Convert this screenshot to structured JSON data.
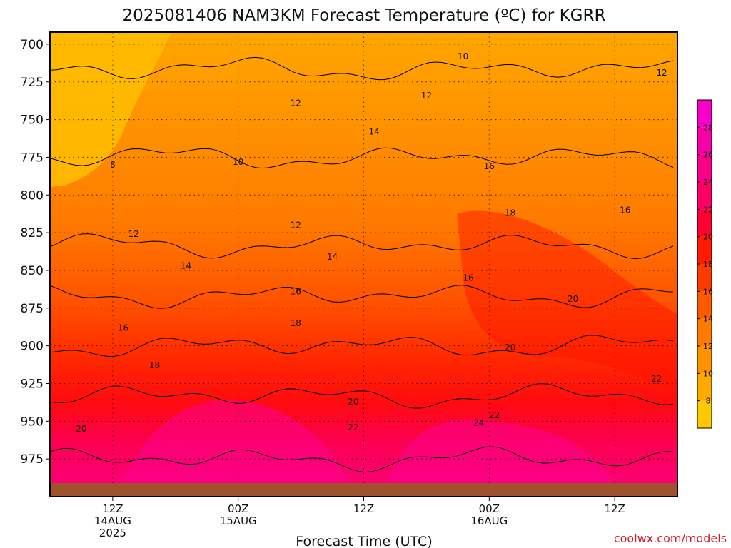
{
  "chart_data": {
    "type": "heatmap",
    "title": "2025081406 NAM3KM Forecast Temperature (ºC) for KGRR",
    "xlabel": "Forecast Time (UTC)",
    "ylabel": "",
    "y_ticks": [
      "700",
      "725",
      "750",
      "775",
      "800",
      "825",
      "850",
      "875",
      "900",
      "925",
      "950",
      "975"
    ],
    "y_values": [
      700,
      725,
      750,
      775,
      800,
      825,
      850,
      875,
      900,
      925,
      950,
      975
    ],
    "ylim": [
      692,
      1000
    ],
    "y_axis": "pressure (hPa), increasing downward",
    "x_ticks": [
      {
        "time": "12Z",
        "date": "14AUG",
        "year": "2025",
        "hour": 6
      },
      {
        "time": "00Z",
        "date": "15AUG",
        "year": "",
        "hour": 18
      },
      {
        "time": "12Z",
        "date": "",
        "year": "",
        "hour": 30
      },
      {
        "time": "00Z",
        "date": "16AUG",
        "year": "",
        "hour": 42
      },
      {
        "time": "12Z",
        "date": "",
        "year": "",
        "hour": 54
      }
    ],
    "xlim_hours": [
      0,
      60
    ],
    "grid": "dotted",
    "colorbar": {
      "levels": [
        6,
        8,
        10,
        12,
        14,
        16,
        18,
        20,
        22,
        24,
        26,
        28,
        30
      ],
      "tick_labels": [
        "8",
        "10",
        "12",
        "14",
        "16",
        "18",
        "20",
        "22",
        "24",
        "26",
        "28"
      ],
      "colors": [
        "#ffc800",
        "#ffaa00",
        "#ff9200",
        "#ff7a00",
        "#ff5a00",
        "#ff3a00",
        "#ff1a00",
        "#ff0030",
        "#fc0064",
        "#fa0088",
        "#f800a8",
        "#f700c8"
      ]
    },
    "temperature_profile": [
      {
        "p": 700,
        "t": 9
      },
      {
        "p": 725,
        "t": 10.5
      },
      {
        "p": 750,
        "t": 11.5
      },
      {
        "p": 775,
        "t": 12
      },
      {
        "p": 800,
        "t": 12.5
      },
      {
        "p": 825,
        "t": 13.5
      },
      {
        "p": 850,
        "t": 15
      },
      {
        "p": 875,
        "t": 16.5
      },
      {
        "p": 900,
        "t": 18
      },
      {
        "p": 925,
        "t": 19.5
      },
      {
        "p": 950,
        "t": 21
      },
      {
        "p": 975,
        "t": 22
      }
    ],
    "contour_labels": [
      {
        "text": "10",
        "hour": 39.5,
        "p": 708
      },
      {
        "text": "12",
        "hour": 36,
        "p": 734
      },
      {
        "text": "12",
        "hour": 23.5,
        "p": 739
      },
      {
        "text": "10",
        "hour": 18,
        "p": 778
      },
      {
        "text": "14",
        "hour": 31,
        "p": 758
      },
      {
        "text": "12",
        "hour": 58.5,
        "p": 719
      },
      {
        "text": "16",
        "hour": 42,
        "p": 781
      },
      {
        "text": "16",
        "hour": 55,
        "p": 810
      },
      {
        "text": "18",
        "hour": 44,
        "p": 812
      },
      {
        "text": "8",
        "hour": 6,
        "p": 780
      },
      {
        "text": "12",
        "hour": 8,
        "p": 826
      },
      {
        "text": "12",
        "hour": 23.5,
        "p": 820
      },
      {
        "text": "14",
        "hour": 13,
        "p": 847
      },
      {
        "text": "14",
        "hour": 27,
        "p": 841
      },
      {
        "text": "16",
        "hour": 23.5,
        "p": 864
      },
      {
        "text": "16",
        "hour": 40,
        "p": 855
      },
      {
        "text": "16",
        "hour": 7,
        "p": 888
      },
      {
        "text": "18",
        "hour": 23.5,
        "p": 885
      },
      {
        "text": "18",
        "hour": 10,
        "p": 913
      },
      {
        "text": "20",
        "hour": 50,
        "p": 869
      },
      {
        "text": "20",
        "hour": 44,
        "p": 901
      },
      {
        "text": "20",
        "hour": 29,
        "p": 937
      },
      {
        "text": "20",
        "hour": 3,
        "p": 955
      },
      {
        "text": "22",
        "hour": 29,
        "p": 954
      },
      {
        "text": "22",
        "hour": 42.5,
        "p": 946
      },
      {
        "text": "24",
        "hour": 41,
        "p": 951
      },
      {
        "text": "22",
        "hour": 58,
        "p": 922
      }
    ]
  },
  "credit": "coolwx.com/models"
}
